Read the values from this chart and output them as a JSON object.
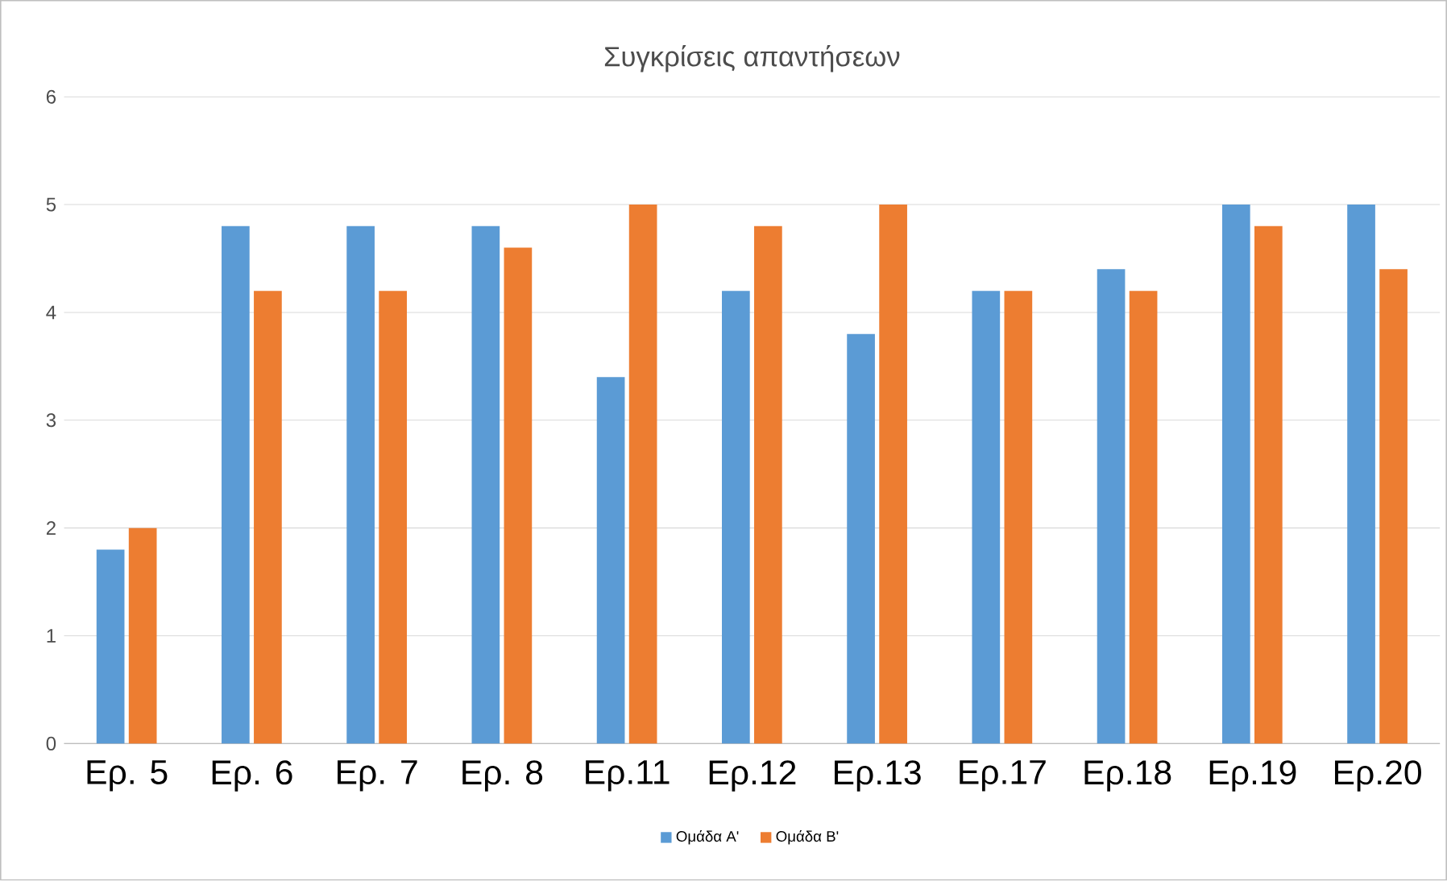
{
  "chart_data": {
    "type": "bar",
    "title": "Συγκρίσεις απαντήσεων",
    "categories": [
      "Ερ. 5",
      "Ερ. 6",
      "Ερ. 7",
      "Ερ. 8",
      "Ερ.11",
      "Ερ.12",
      "Ερ.13",
      "Ερ.17",
      "Ερ.18",
      "Ερ.19",
      "Ερ.20"
    ],
    "series": [
      {
        "name": "Ομάδα Α'",
        "color": "#5b9bd5",
        "values": [
          1.8,
          4.8,
          4.8,
          4.8,
          3.4,
          4.2,
          3.8,
          4.2,
          4.4,
          5,
          5
        ]
      },
      {
        "name": "Ομάδα Β'",
        "color": "#ed7d31",
        "values": [
          2,
          4.2,
          4.2,
          4.6,
          5,
          4.8,
          5,
          4.2,
          4.2,
          4.8,
          4.4
        ]
      }
    ],
    "ylim": [
      0,
      6
    ],
    "yticks": [
      0,
      1,
      2,
      3,
      4,
      5,
      6
    ],
    "grid": "y",
    "legend": "bottom"
  }
}
